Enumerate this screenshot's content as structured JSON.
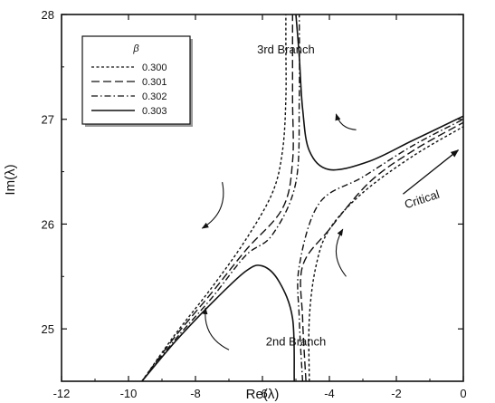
{
  "chart_data": {
    "type": "line",
    "xlabel": "Re(λ)",
    "ylabel": "Im(λ)",
    "xlim": [
      -12,
      0
    ],
    "ylim": [
      24.5,
      28
    ],
    "x_ticks": [
      -12,
      -10,
      -8,
      -6,
      -4,
      -2,
      0
    ],
    "y_ticks": [
      25,
      26,
      27,
      28
    ],
    "grid": false,
    "legend": {
      "title": "β",
      "placement": "top-left",
      "entries": [
        "0.300",
        "0.301",
        "0.302",
        "0.303"
      ]
    },
    "series": [
      {
        "name": "0.300",
        "dash": "short-dash",
        "upper_left": [
          [
            -9.6,
            24.5
          ],
          [
            -8.6,
            24.95
          ],
          [
            -7.5,
            25.4
          ],
          [
            -6.5,
            25.85
          ],
          [
            -5.7,
            26.3
          ],
          [
            -5.4,
            26.7
          ],
          [
            -5.3,
            27.2
          ],
          [
            -5.3,
            27.7
          ],
          [
            -5.3,
            28.0
          ]
        ],
        "lower_right": [
          [
            -4.6,
            24.5
          ],
          [
            -4.6,
            25.1
          ],
          [
            -4.4,
            25.6
          ],
          [
            -4.0,
            25.95
          ],
          [
            -3.0,
            26.3
          ],
          [
            -1.5,
            26.65
          ],
          [
            0.0,
            26.93
          ]
        ]
      },
      {
        "name": "0.301",
        "dash": "long-dash",
        "upper_left": [
          [
            -9.6,
            24.5
          ],
          [
            -8.6,
            24.93
          ],
          [
            -7.5,
            25.35
          ],
          [
            -6.5,
            25.75
          ],
          [
            -5.4,
            26.15
          ],
          [
            -5.1,
            26.6
          ],
          [
            -5.1,
            27.2
          ],
          [
            -5.1,
            28.0
          ]
        ],
        "lower_right": [
          [
            -4.7,
            24.5
          ],
          [
            -4.8,
            25.1
          ],
          [
            -4.8,
            25.6
          ],
          [
            -4.0,
            25.95
          ],
          [
            -2.8,
            26.4
          ],
          [
            -1.5,
            26.7
          ],
          [
            0.0,
            26.97
          ]
        ]
      },
      {
        "name": "0.302",
        "dash": "dash-dot",
        "upper_left": [
          [
            -9.6,
            24.5
          ],
          [
            -8.6,
            24.9
          ],
          [
            -7.5,
            25.3
          ],
          [
            -6.5,
            25.7
          ],
          [
            -5.7,
            25.9
          ],
          [
            -5.0,
            26.4
          ],
          [
            -4.9,
            27.2
          ],
          [
            -4.9,
            28.0
          ]
        ],
        "lower_right": [
          [
            -4.8,
            24.5
          ],
          [
            -4.9,
            25.1
          ],
          [
            -4.9,
            25.6
          ],
          [
            -4.3,
            26.2
          ],
          [
            -3.0,
            26.45
          ],
          [
            -1.5,
            26.75
          ],
          [
            0.0,
            27.0
          ]
        ]
      },
      {
        "name": "0.303",
        "dash": "solid",
        "upper_left": [
          [
            -9.6,
            24.5
          ],
          [
            -8.6,
            24.88
          ],
          [
            -7.5,
            25.25
          ],
          [
            -6.5,
            25.55
          ],
          [
            -6.0,
            25.6
          ],
          [
            -5.5,
            25.45
          ],
          [
            -5.1,
            25.1
          ],
          [
            -5.05,
            24.5
          ]
        ],
        "lower_right": [
          [
            -5.0,
            28.0
          ],
          [
            -4.9,
            27.6
          ],
          [
            -4.8,
            27.1
          ],
          [
            -4.6,
            26.7
          ],
          [
            -4.0,
            26.52
          ],
          [
            -2.8,
            26.6
          ],
          [
            -1.5,
            26.8
          ],
          [
            0.0,
            27.03
          ]
        ]
      }
    ],
    "annotations": [
      {
        "text": "3rd Branch",
        "x": -5.3,
        "y": 27.63
      },
      {
        "text": "2nd Branch",
        "x": -5.0,
        "y": 24.84
      },
      {
        "text": "Critical",
        "x": -1.2,
        "y": 26.2
      }
    ],
    "flow_arrows": [
      {
        "from": [
          -3.2,
          26.9
        ],
        "to": [
          -3.8,
          27.05
        ]
      },
      {
        "from": [
          -7.2,
          26.4
        ],
        "to": [
          -7.8,
          25.96
        ]
      },
      {
        "from": [
          -3.5,
          25.5
        ],
        "to": [
          -3.6,
          25.95
        ]
      },
      {
        "from": [
          -7.0,
          24.8
        ],
        "to": [
          -7.7,
          25.2
        ]
      }
    ]
  }
}
